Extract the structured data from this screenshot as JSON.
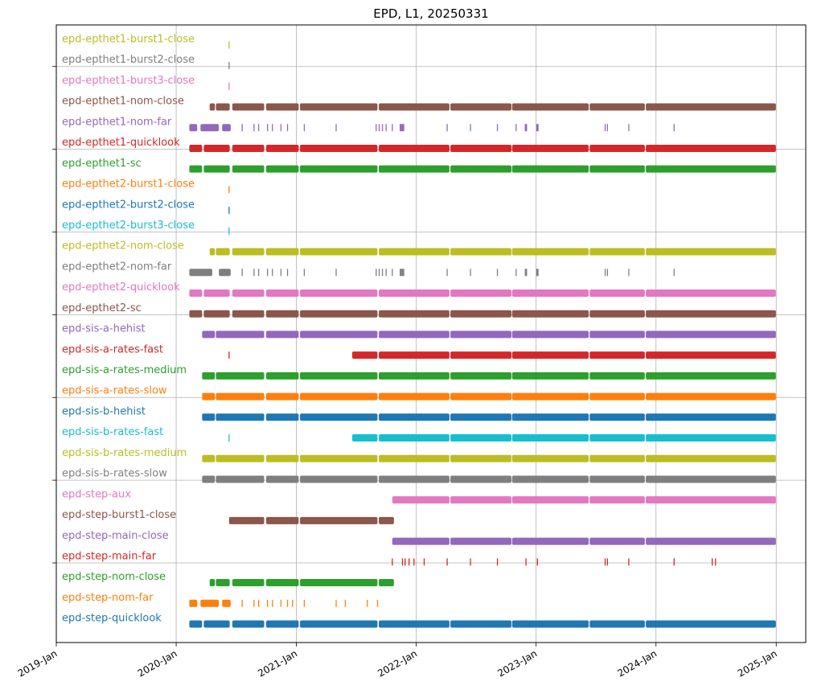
{
  "chart_data": {
    "type": "timeline",
    "title": "EPD, L1, 20250331",
    "xlim": [
      "2019-01-01",
      "2025-04-01"
    ],
    "x_ticks": [
      {
        "date": "2019-01-01",
        "label": "2019-Jan"
      },
      {
        "date": "2020-01-01",
        "label": "2020-Jan"
      },
      {
        "date": "2021-01-01",
        "label": "2021-Jan"
      },
      {
        "date": "2022-01-01",
        "label": "2022-Jan"
      },
      {
        "date": "2023-01-01",
        "label": "2023-Jan"
      },
      {
        "date": "2024-01-01",
        "label": "2024-Jan"
      },
      {
        "date": "2025-01-01",
        "label": "2025-Jan"
      }
    ],
    "grid": true,
    "colors": {
      "blue": "#1f77b4",
      "orange": "#ff7f0e",
      "green": "#2ca02c",
      "red": "#d62728",
      "purple": "#9467bd",
      "brown": "#8c564b",
      "pink": "#e377c2",
      "gray": "#7f7f7f",
      "olive": "#bcbd22",
      "cyan": "#17becf"
    },
    "series": [
      {
        "name": "epd-epthet1-burst1-close",
        "color": "olive",
        "marks": [
          "2020-06-10"
        ]
      },
      {
        "name": "epd-epthet1-burst2-close",
        "color": "gray",
        "marks": [
          "2020-06-10"
        ]
      },
      {
        "name": "epd-epthet1-burst3-close",
        "color": "pink",
        "marks": [
          "2020-06-10"
        ]
      },
      {
        "name": "epd-epthet1-nom-close",
        "color": "brown",
        "intervals": [
          [
            "2020-04-12",
            "2020-04-28"
          ],
          [
            "2020-05-01",
            "2020-06-12"
          ],
          [
            "2020-06-20",
            "2020-09-25"
          ],
          [
            "2020-10-01",
            "2021-01-08"
          ],
          [
            "2021-01-12",
            "2021-09-05"
          ],
          [
            "2021-09-09",
            "2022-04-12"
          ],
          [
            "2022-04-15",
            "2022-10-18"
          ],
          [
            "2022-10-20",
            "2023-06-10"
          ],
          [
            "2023-06-13",
            "2023-11-28"
          ],
          [
            "2023-12-01",
            "2024-12-31"
          ]
        ]
      },
      {
        "name": "epd-epthet1-nom-far",
        "color": "purple",
        "intervals": [
          [
            "2020-02-10",
            "2020-03-05"
          ],
          [
            "2020-03-15",
            "2020-05-10"
          ],
          [
            "2020-05-20",
            "2020-06-15"
          ]
        ],
        "marks": [
          "2020-07-20",
          "2020-08-25",
          "2020-09-08",
          "2020-10-05",
          "2020-10-20",
          "2020-11-15",
          "2020-12-05",
          "2021-01-25",
          "2021-05-02",
          "2021-09-01",
          "2021-09-10",
          "2021-09-20",
          "2021-10-01",
          "2021-10-20",
          "2022-04-05",
          "2022-06-15",
          "2022-09-05",
          "2022-11-01",
          "2023-07-30",
          "2023-08-06",
          "2023-10-10",
          "2024-02-25"
        ],
        "thick_marks": [
          "2021-11-15",
          "2021-11-22",
          "2022-12-01",
          "2023-01-05"
        ]
      },
      {
        "name": "epd-epthet1-quicklook",
        "color": "red",
        "intervals": [
          [
            "2020-02-10",
            "2020-03-20"
          ],
          [
            "2020-03-25",
            "2020-06-12"
          ],
          [
            "2020-06-20",
            "2020-09-25"
          ],
          [
            "2020-10-01",
            "2021-01-08"
          ],
          [
            "2021-01-12",
            "2021-09-05"
          ],
          [
            "2021-09-09",
            "2022-04-12"
          ],
          [
            "2022-04-15",
            "2022-10-18"
          ],
          [
            "2022-10-20",
            "2023-06-10"
          ],
          [
            "2023-06-13",
            "2023-11-28"
          ],
          [
            "2023-12-01",
            "2024-12-31"
          ]
        ]
      },
      {
        "name": "epd-epthet1-sc",
        "color": "green",
        "intervals": [
          [
            "2020-02-10",
            "2020-03-20"
          ],
          [
            "2020-03-25",
            "2020-06-12"
          ],
          [
            "2020-06-20",
            "2020-09-25"
          ],
          [
            "2020-10-01",
            "2021-01-08"
          ],
          [
            "2021-01-12",
            "2021-09-05"
          ],
          [
            "2021-09-09",
            "2022-04-12"
          ],
          [
            "2022-04-15",
            "2022-10-18"
          ],
          [
            "2022-10-20",
            "2023-06-10"
          ],
          [
            "2023-06-13",
            "2023-11-28"
          ],
          [
            "2023-12-01",
            "2024-12-31"
          ]
        ]
      },
      {
        "name": "epd-epthet2-burst1-close",
        "color": "orange",
        "marks": [
          "2020-06-10"
        ]
      },
      {
        "name": "epd-epthet2-burst2-close",
        "color": "blue",
        "marks": [
          "2020-06-10"
        ]
      },
      {
        "name": "epd-epthet2-burst3-close",
        "color": "cyan",
        "marks": [
          "2020-06-10"
        ]
      },
      {
        "name": "epd-epthet2-nom-close",
        "color": "olive",
        "intervals": [
          [
            "2020-04-12",
            "2020-04-28"
          ],
          [
            "2020-05-01",
            "2020-06-12"
          ],
          [
            "2020-06-20",
            "2020-09-25"
          ],
          [
            "2020-10-01",
            "2021-01-08"
          ],
          [
            "2021-01-12",
            "2021-09-05"
          ],
          [
            "2021-09-09",
            "2022-04-12"
          ],
          [
            "2022-04-15",
            "2022-10-18"
          ],
          [
            "2022-10-20",
            "2023-06-10"
          ],
          [
            "2023-06-13",
            "2023-11-28"
          ],
          [
            "2023-12-01",
            "2024-12-31"
          ]
        ]
      },
      {
        "name": "epd-epthet2-nom-far",
        "color": "gray",
        "intervals": [
          [
            "2020-02-10",
            "2020-04-20"
          ],
          [
            "2020-05-10",
            "2020-06-15"
          ]
        ],
        "marks": [
          "2020-07-20",
          "2020-08-25",
          "2020-09-08",
          "2020-10-05",
          "2020-10-20",
          "2020-11-15",
          "2020-12-05",
          "2021-01-25",
          "2021-05-02",
          "2021-09-01",
          "2021-09-10",
          "2021-09-20",
          "2021-10-01",
          "2021-10-20",
          "2022-04-05",
          "2022-06-15",
          "2022-09-05",
          "2022-11-01",
          "2023-07-30",
          "2023-08-06",
          "2023-10-10",
          "2024-02-25"
        ],
        "thick_marks": [
          "2021-11-15",
          "2021-11-22",
          "2022-12-01",
          "2023-01-05"
        ]
      },
      {
        "name": "epd-epthet2-quicklook",
        "color": "pink",
        "intervals": [
          [
            "2020-02-10",
            "2020-03-20"
          ],
          [
            "2020-03-25",
            "2020-06-12"
          ],
          [
            "2020-06-20",
            "2020-09-25"
          ],
          [
            "2020-10-01",
            "2021-01-08"
          ],
          [
            "2021-01-12",
            "2021-09-05"
          ],
          [
            "2021-09-09",
            "2022-04-12"
          ],
          [
            "2022-04-15",
            "2022-10-18"
          ],
          [
            "2022-10-20",
            "2023-06-10"
          ],
          [
            "2023-06-13",
            "2023-11-28"
          ],
          [
            "2023-12-01",
            "2024-12-31"
          ]
        ]
      },
      {
        "name": "epd-epthet2-sc",
        "color": "brown",
        "intervals": [
          [
            "2020-02-10",
            "2020-03-20"
          ],
          [
            "2020-03-25",
            "2020-06-12"
          ],
          [
            "2020-06-20",
            "2020-09-25"
          ],
          [
            "2020-10-01",
            "2021-01-08"
          ],
          [
            "2021-01-12",
            "2021-09-05"
          ],
          [
            "2021-09-09",
            "2022-04-12"
          ],
          [
            "2022-04-15",
            "2022-10-18"
          ],
          [
            "2022-10-20",
            "2023-06-10"
          ],
          [
            "2023-06-13",
            "2023-11-28"
          ],
          [
            "2023-12-01",
            "2024-12-31"
          ]
        ]
      },
      {
        "name": "epd-sis-a-hehist",
        "color": "purple",
        "intervals": [
          [
            "2020-03-20",
            "2020-04-28"
          ],
          [
            "2020-05-01",
            "2020-09-25"
          ],
          [
            "2020-10-01",
            "2021-01-08"
          ],
          [
            "2021-01-12",
            "2021-09-05"
          ],
          [
            "2021-09-09",
            "2022-04-12"
          ],
          [
            "2022-04-15",
            "2022-10-18"
          ],
          [
            "2022-10-20",
            "2023-06-10"
          ],
          [
            "2023-06-13",
            "2023-11-28"
          ],
          [
            "2023-12-01",
            "2024-12-31"
          ]
        ]
      },
      {
        "name": "epd-sis-a-rates-fast",
        "color": "red",
        "marks": [
          "2020-06-10"
        ],
        "intervals": [
          [
            "2021-06-20",
            "2021-09-05"
          ],
          [
            "2021-09-09",
            "2022-04-12"
          ],
          [
            "2022-04-15",
            "2022-10-18"
          ],
          [
            "2022-10-20",
            "2023-06-10"
          ],
          [
            "2023-06-13",
            "2023-11-28"
          ],
          [
            "2023-12-01",
            "2024-12-31"
          ]
        ]
      },
      {
        "name": "epd-sis-a-rates-medium",
        "color": "green",
        "intervals": [
          [
            "2020-03-20",
            "2020-04-28"
          ],
          [
            "2020-05-01",
            "2020-09-25"
          ],
          [
            "2020-10-01",
            "2021-01-08"
          ],
          [
            "2021-01-12",
            "2021-09-05"
          ],
          [
            "2021-09-09",
            "2022-04-12"
          ],
          [
            "2022-04-15",
            "2022-10-18"
          ],
          [
            "2022-10-20",
            "2023-06-10"
          ],
          [
            "2023-06-13",
            "2023-11-28"
          ],
          [
            "2023-12-01",
            "2024-12-31"
          ]
        ]
      },
      {
        "name": "epd-sis-a-rates-slow",
        "color": "orange",
        "intervals": [
          [
            "2020-03-20",
            "2020-04-28"
          ],
          [
            "2020-05-01",
            "2020-09-25"
          ],
          [
            "2020-10-01",
            "2021-01-08"
          ],
          [
            "2021-01-12",
            "2021-09-05"
          ],
          [
            "2021-09-09",
            "2022-04-12"
          ],
          [
            "2022-04-15",
            "2022-10-18"
          ],
          [
            "2022-10-20",
            "2023-06-10"
          ],
          [
            "2023-06-13",
            "2023-11-28"
          ],
          [
            "2023-12-01",
            "2024-12-31"
          ]
        ]
      },
      {
        "name": "epd-sis-b-hehist",
        "color": "blue",
        "intervals": [
          [
            "2020-03-20",
            "2020-04-28"
          ],
          [
            "2020-05-01",
            "2020-09-25"
          ],
          [
            "2020-10-01",
            "2021-01-08"
          ],
          [
            "2021-01-12",
            "2021-09-05"
          ],
          [
            "2021-09-09",
            "2022-04-12"
          ],
          [
            "2022-04-15",
            "2022-10-18"
          ],
          [
            "2022-10-20",
            "2023-06-10"
          ],
          [
            "2023-06-13",
            "2023-11-28"
          ],
          [
            "2023-12-01",
            "2024-12-31"
          ]
        ]
      },
      {
        "name": "epd-sis-b-rates-fast",
        "color": "cyan",
        "marks": [
          "2020-06-10"
        ],
        "intervals": [
          [
            "2021-06-20",
            "2021-09-05"
          ],
          [
            "2021-09-09",
            "2022-04-12"
          ],
          [
            "2022-04-15",
            "2022-10-18"
          ],
          [
            "2022-10-20",
            "2023-06-10"
          ],
          [
            "2023-06-13",
            "2023-11-28"
          ],
          [
            "2023-12-01",
            "2024-12-31"
          ]
        ]
      },
      {
        "name": "epd-sis-b-rates-medium",
        "color": "olive",
        "intervals": [
          [
            "2020-03-20",
            "2020-04-28"
          ],
          [
            "2020-05-01",
            "2020-09-25"
          ],
          [
            "2020-10-01",
            "2021-01-08"
          ],
          [
            "2021-01-12",
            "2021-09-05"
          ],
          [
            "2021-09-09",
            "2022-04-12"
          ],
          [
            "2022-04-15",
            "2022-10-18"
          ],
          [
            "2022-10-20",
            "2023-06-10"
          ],
          [
            "2023-06-13",
            "2023-11-28"
          ],
          [
            "2023-12-01",
            "2024-12-31"
          ]
        ]
      },
      {
        "name": "epd-sis-b-rates-slow",
        "color": "gray",
        "intervals": [
          [
            "2020-03-20",
            "2020-04-28"
          ],
          [
            "2020-05-01",
            "2020-09-25"
          ],
          [
            "2020-10-01",
            "2021-01-08"
          ],
          [
            "2021-01-12",
            "2021-09-05"
          ],
          [
            "2021-09-09",
            "2022-04-12"
          ],
          [
            "2022-04-15",
            "2022-10-18"
          ],
          [
            "2022-10-20",
            "2023-06-10"
          ],
          [
            "2023-06-13",
            "2023-11-28"
          ],
          [
            "2023-12-01",
            "2024-12-31"
          ]
        ]
      },
      {
        "name": "epd-step-aux",
        "color": "pink",
        "intervals": [
          [
            "2021-10-20",
            "2022-04-12"
          ],
          [
            "2022-04-15",
            "2022-10-18"
          ],
          [
            "2022-10-20",
            "2023-06-10"
          ],
          [
            "2023-06-13",
            "2023-11-28"
          ],
          [
            "2023-12-01",
            "2024-12-31"
          ]
        ]
      },
      {
        "name": "epd-step-burst1-close",
        "color": "brown",
        "intervals": [
          [
            "2020-06-10",
            "2020-09-25"
          ],
          [
            "2020-10-01",
            "2021-01-08"
          ],
          [
            "2021-01-12",
            "2021-09-05"
          ],
          [
            "2021-09-09",
            "2021-10-25"
          ]
        ]
      },
      {
        "name": "epd-step-main-close",
        "color": "purple",
        "intervals": [
          [
            "2021-10-20",
            "2022-04-12"
          ],
          [
            "2022-04-15",
            "2022-10-18"
          ],
          [
            "2022-10-20",
            "2023-06-10"
          ],
          [
            "2023-06-13",
            "2023-11-28"
          ],
          [
            "2023-12-01",
            "2024-12-31"
          ]
        ]
      },
      {
        "name": "epd-step-main-far",
        "color": "red",
        "marks": [
          "2021-10-20",
          "2021-11-20",
          "2021-11-28",
          "2021-12-10",
          "2021-12-25",
          "2022-01-25",
          "2022-04-05",
          "2022-06-15",
          "2022-09-05",
          "2022-12-01",
          "2023-01-05",
          "2023-07-30",
          "2023-08-06",
          "2023-10-10",
          "2024-02-25",
          "2024-06-20",
          "2024-06-30"
        ]
      },
      {
        "name": "epd-step-nom-close",
        "color": "green",
        "intervals": [
          [
            "2020-04-12",
            "2020-04-28"
          ],
          [
            "2020-05-01",
            "2020-06-12"
          ],
          [
            "2020-06-20",
            "2020-09-25"
          ],
          [
            "2020-10-01",
            "2021-01-08"
          ],
          [
            "2021-01-12",
            "2021-09-05"
          ],
          [
            "2021-09-09",
            "2021-10-25"
          ]
        ]
      },
      {
        "name": "epd-step-nom-far",
        "color": "orange",
        "intervals": [
          [
            "2020-02-10",
            "2020-03-05"
          ],
          [
            "2020-03-15",
            "2020-05-10"
          ],
          [
            "2020-05-20",
            "2020-06-15"
          ]
        ],
        "marks": [
          "2020-07-20",
          "2020-08-25",
          "2020-09-08",
          "2020-10-05",
          "2020-10-20",
          "2020-11-15",
          "2020-12-05",
          "2020-12-20",
          "2021-01-25",
          "2021-05-02",
          "2021-05-30",
          "2021-08-05",
          "2021-09-05"
        ]
      },
      {
        "name": "epd-step-quicklook",
        "color": "blue",
        "intervals": [
          [
            "2020-02-10",
            "2020-03-20"
          ],
          [
            "2020-03-25",
            "2020-06-12"
          ],
          [
            "2020-06-20",
            "2020-09-25"
          ],
          [
            "2020-10-01",
            "2021-01-08"
          ],
          [
            "2021-01-12",
            "2021-09-05"
          ],
          [
            "2021-09-09",
            "2022-04-12"
          ],
          [
            "2022-04-15",
            "2022-10-18"
          ],
          [
            "2022-10-20",
            "2023-06-10"
          ],
          [
            "2023-06-13",
            "2023-11-28"
          ],
          [
            "2023-12-01",
            "2024-12-31"
          ]
        ]
      }
    ]
  }
}
